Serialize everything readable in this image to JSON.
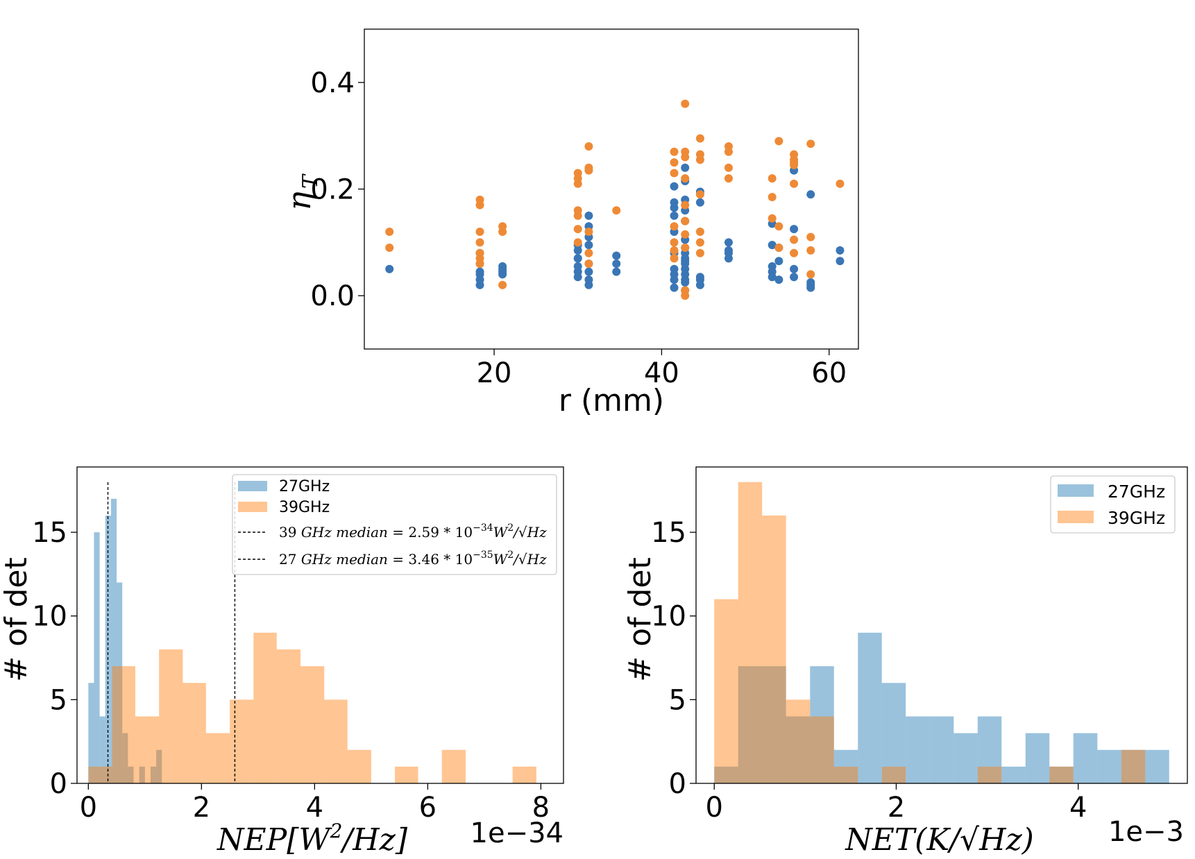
{
  "colors": {
    "c27": "#1f77b4",
    "c39": "#ff7f0e",
    "scatter27": "#3a76b5",
    "scatter39": "#ee8a36"
  },
  "chart_data": [
    {
      "type": "scatter",
      "title": "",
      "xlabel": "r (mm)",
      "ylabel": "η",
      "ylabel_sub": "T",
      "xlim": [
        4.5,
        63.5
      ],
      "ylim": [
        -0.1,
        0.5
      ],
      "xticks": [
        "20",
        "40",
        "60"
      ],
      "yticks": [
        "0.0",
        "0.2",
        "0.4"
      ],
      "series": [
        {
          "name": "27GHz",
          "x": [
            7.5,
            18.3,
            18.3,
            18.3,
            18.3,
            18.3,
            18.3,
            21,
            21,
            21,
            21,
            30,
            30,
            30,
            30,
            30,
            30,
            30,
            31.3,
            31.3,
            31.3,
            31.3,
            31.3,
            31.3,
            31.3,
            31.3,
            34.6,
            34.6,
            34.6,
            41.5,
            41.5,
            41.5,
            41.5,
            41.5,
            41.5,
            41.5,
            41.5,
            41.5,
            41.5,
            42.8,
            42.8,
            42.8,
            42.8,
            42.8,
            42.8,
            42.8,
            42.8,
            42.8,
            42.8,
            42.8,
            42.8,
            42.8,
            42.8,
            42.8,
            42.8,
            44.6,
            44.6,
            44.6,
            44.6,
            44.6,
            48,
            48,
            48,
            48,
            53.2,
            53.2,
            53.2,
            53.2,
            53.2,
            54,
            54,
            54,
            55.8,
            55.8,
            55.8,
            55.8,
            57.8,
            57.8,
            57.8,
            57.8,
            61.3,
            61.3
          ],
          "y": [
            0.05,
            0.02,
            0.03,
            0.04,
            0.045,
            0.06,
            0.08,
            0.04,
            0.05,
            0.055,
            0.045,
            0.035,
            0.045,
            0.055,
            0.07,
            0.085,
            0.095,
            0.07,
            0.02,
            0.03,
            0.045,
            0.06,
            0.095,
            0.11,
            0.13,
            0.15,
            0.045,
            0.06,
            0.075,
            0.015,
            0.03,
            0.04,
            0.05,
            0.08,
            0.12,
            0.15,
            0.165,
            0.175,
            0.205,
            0.01,
            0.025,
            0.03,
            0.04,
            0.05,
            0.06,
            0.065,
            0.07,
            0.08,
            0.09,
            0.105,
            0.14,
            0.16,
            0.18,
            0.215,
            0.24,
            0.02,
            0.03,
            0.035,
            0.175,
            0.195,
            0.07,
            0.08,
            0.085,
            0.1,
            0.035,
            0.045,
            0.055,
            0.095,
            0.135,
            0.03,
            0.065,
            0.09,
            0.035,
            0.05,
            0.125,
            0.235,
            0.015,
            0.02,
            0.025,
            0.19,
            0.065,
            0.085
          ]
        },
        {
          "name": "39GHz",
          "x": [
            7.5,
            7.5,
            18.3,
            18.3,
            18.3,
            18.3,
            18.3,
            18.3,
            18.3,
            21,
            21,
            21,
            30,
            30,
            30,
            30,
            30,
            30,
            30,
            31.3,
            31.3,
            31.3,
            31.3,
            31.3,
            31.3,
            34.6,
            41.5,
            41.5,
            41.5,
            41.5,
            41.5,
            41.5,
            41.5,
            42.8,
            42.8,
            42.8,
            42.8,
            42.8,
            42.8,
            42.8,
            42.8,
            42.8,
            42.8,
            44.6,
            44.6,
            44.6,
            44.6,
            44.6,
            44.6,
            44.6,
            48,
            48,
            48,
            48,
            53.2,
            53.2,
            53.2,
            54,
            54,
            54,
            55.8,
            55.8,
            55.8,
            55.8,
            55.8,
            55.8,
            55.8,
            57.8,
            57.8,
            57.8,
            57.8,
            61.3
          ],
          "y": [
            0.12,
            0.09,
            0.18,
            0.17,
            0.12,
            0.1,
            0.08,
            0.07,
            0.06,
            0.13,
            0.12,
            0.02,
            0.23,
            0.22,
            0.21,
            0.16,
            0.15,
            0.125,
            0.1,
            0.28,
            0.24,
            0.235,
            0.12,
            0.08,
            0.06,
            0.16,
            0.27,
            0.25,
            0.23,
            0.13,
            0.1,
            0.085,
            0.07,
            0.36,
            0.27,
            0.26,
            0.22,
            0.17,
            0.14,
            0.115,
            0.09,
            0.01,
            0.0,
            0.295,
            0.265,
            0.255,
            0.19,
            0.12,
            0.1,
            0.08,
            0.28,
            0.27,
            0.24,
            0.22,
            0.22,
            0.185,
            0.145,
            0.29,
            0.13,
            0.09,
            0.265,
            0.255,
            0.25,
            0.245,
            0.21,
            0.105,
            0.08,
            0.285,
            0.11,
            0.085,
            0.04,
            0.21
          ]
        }
      ]
    },
    {
      "type": "bar",
      "subtype": "histogram",
      "xlabel": "NEP[W",
      "xlabel_sup": "2",
      "xlabel_tail": "/Hz]",
      "ylabel": "# of det",
      "offset_text": "1e−34",
      "xlim": [
        -0.2,
        8.4
      ],
      "ylim": [
        0,
        18.9
      ],
      "xticks": [
        "0",
        "2",
        "4",
        "6",
        "8"
      ],
      "yticks": [
        "0",
        "5",
        "10",
        "15"
      ],
      "series": [
        {
          "name": "27GHz",
          "bin_edges": [
            0.0,
            0.1,
            0.2,
            0.3,
            0.4,
            0.5,
            0.6,
            0.7,
            0.8,
            0.9,
            1.0,
            1.1,
            1.2,
            1.3,
            1.4
          ],
          "values": [
            6,
            15,
            4,
            16,
            17,
            12,
            3,
            1,
            0,
            1,
            0,
            1,
            2,
            0
          ]
        },
        {
          "name": "39GHz",
          "bin_edges": [
            0.0,
            0.42,
            0.83,
            1.25,
            1.67,
            2.08,
            2.5,
            2.92,
            3.33,
            3.75,
            4.17,
            4.58,
            5.0,
            5.42,
            5.83,
            6.25,
            6.67,
            7.08,
            7.5,
            7.92
          ],
          "values": [
            1,
            7,
            4,
            8,
            6,
            3,
            5,
            9,
            8,
            7,
            5,
            2,
            0,
            1,
            0,
            2,
            0,
            0,
            1
          ]
        }
      ],
      "vlines": [
        0.346,
        2.59
      ],
      "legend": [
        {
          "label": "27GHz"
        },
        {
          "label": "39GHz"
        },
        {
          "pre": "39 ",
          "math": "GHz median",
          "post": " = 2.59 * 10",
          "sup": "−34",
          "tail": "W",
          "sup2": "2",
          "end": "/√Hz"
        },
        {
          "pre": "27 ",
          "math": "GHz median",
          "post": " = 3.46 * 10",
          "sup": "−35",
          "tail": "W",
          "sup2": "2",
          "end": "/√Hz"
        }
      ]
    },
    {
      "type": "bar",
      "subtype": "histogram",
      "xlabel": "NET(K/√Hz)",
      "ylabel": "# of det",
      "offset_text": "1e−3",
      "xlim": [
        -0.2,
        5.2
      ],
      "ylim": [
        0,
        18.9
      ],
      "xticks": [
        "0",
        "2",
        "4"
      ],
      "yticks": [
        "0",
        "5",
        "10",
        "15"
      ],
      "series": [
        {
          "name": "27GHz",
          "bin_edges": [
            0.0,
            0.263,
            0.526,
            0.789,
            1.053,
            1.316,
            1.579,
            1.842,
            2.105,
            2.368,
            2.632,
            2.895,
            3.158,
            3.421,
            3.684,
            3.947,
            4.211,
            4.474,
            4.737,
            5.0
          ],
          "values": [
            1,
            7,
            7,
            4,
            7,
            2,
            9,
            6,
            4,
            4,
            3,
            4,
            1,
            3,
            1,
            3,
            2,
            2,
            2
          ]
        },
        {
          "name": "39GHz",
          "bin_edges": [
            0.0,
            0.263,
            0.526,
            0.789,
            1.053,
            1.316,
            1.579,
            1.842,
            2.105,
            2.368,
            2.632,
            2.895,
            3.158,
            3.421,
            3.684,
            3.947,
            4.211,
            4.474,
            4.737,
            5.0
          ],
          "values": [
            11,
            18,
            16,
            5,
            4,
            1,
            0,
            1,
            0,
            0,
            0,
            1,
            0,
            0,
            1,
            0,
            0,
            2,
            0
          ]
        }
      ],
      "legend": [
        {
          "label": "27GHz"
        },
        {
          "label": "39GHz"
        }
      ]
    }
  ]
}
